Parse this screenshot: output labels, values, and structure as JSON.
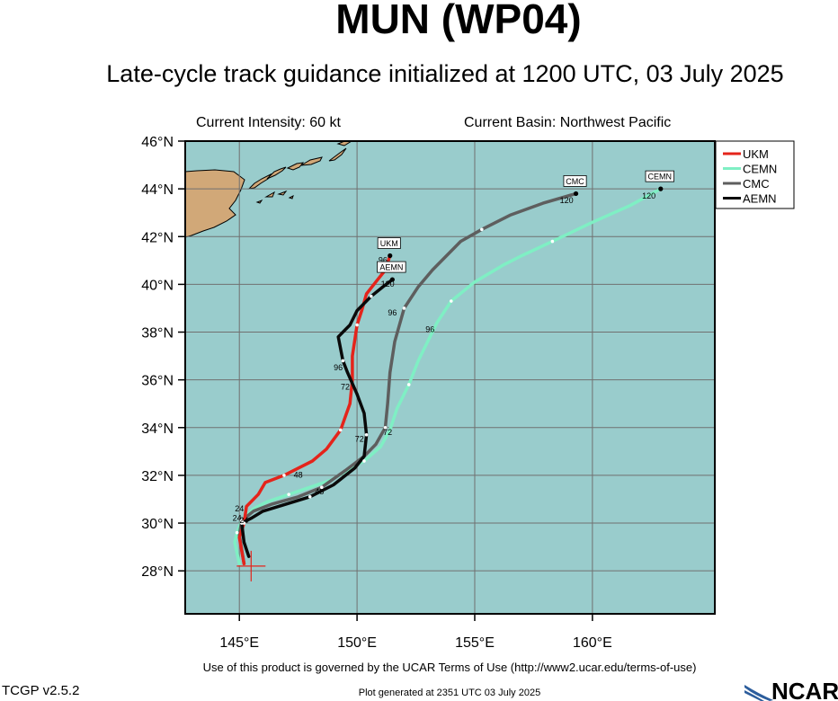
{
  "header": {
    "title": "MUN (WP04)",
    "subtitle": "Late-cycle track guidance initialized at 1200 UTC, 03 July 2025",
    "intensity": "Current Intensity: 60 kt",
    "basin": "Current Basin: Northwest Pacific"
  },
  "footer": {
    "terms": "Use of this product is governed by the UCAR Terms of Use (http://www2.ucar.edu/terms-of-use)",
    "version": "TCGP v2.5.2",
    "generated": "Plot generated at 2351 UTC   03 July 2025",
    "logo": "NCAR"
  },
  "colors": {
    "ocean": "#99cccc",
    "land": "#d1a878",
    "UKM": "#e4241b",
    "CEMN": "#7fefc4",
    "CMC": "#5e5e5e",
    "AEMN": "#0a0a0a",
    "current_position": "#e4241b"
  },
  "chart_data": {
    "type": "line",
    "title": "MUN (WP04)",
    "xlabel": "",
    "ylabel": "",
    "xlim": [
      142.7,
      165.2
    ],
    "ylim": [
      26.2,
      46.0
    ],
    "x_ticks": [
      145,
      150,
      155,
      160
    ],
    "x_tick_labels": [
      "145°E",
      "150°E",
      "155°E",
      "160°E"
    ],
    "y_ticks": [
      28,
      30,
      32,
      34,
      36,
      38,
      40,
      42,
      44,
      46
    ],
    "y_tick_labels": [
      "28°N",
      "30°N",
      "32°N",
      "34°N",
      "36°N",
      "38°N",
      "40°N",
      "42°N",
      "44°N",
      "46°N"
    ],
    "grid": true,
    "legend": "top-right",
    "current_position": {
      "lon": 145.5,
      "lat": 28.2
    },
    "series": [
      {
        "name": "UKM",
        "end_label": "UKM",
        "points": [
          [
            145.2,
            28.3
          ],
          [
            145.0,
            29.4
          ],
          [
            145.2,
            30.0
          ],
          [
            145.3,
            30.7
          ],
          [
            145.8,
            31.2
          ],
          [
            146.1,
            31.7
          ],
          [
            146.9,
            32.0
          ],
          [
            147.5,
            32.3
          ],
          [
            148.1,
            32.6
          ],
          [
            148.7,
            33.1
          ],
          [
            149.3,
            33.9
          ],
          [
            149.7,
            35.0
          ],
          [
            149.8,
            36.0
          ],
          [
            149.8,
            37.0
          ],
          [
            150.0,
            38.3
          ],
          [
            150.2,
            38.9
          ],
          [
            150.4,
            39.6
          ],
          [
            150.8,
            40.1
          ],
          [
            151.2,
            40.6
          ],
          [
            151.4,
            41.2
          ]
        ],
        "tau_labels": [
          {
            "lon": 145.0,
            "lat": 30.5,
            "text": "24"
          },
          {
            "lon": 147.5,
            "lat": 31.9,
            "text": "48"
          },
          {
            "lon": 151.1,
            "lat": 40.9,
            "text": "96"
          }
        ]
      },
      {
        "name": "CEMN",
        "end_label": "CEMN",
        "points": [
          [
            145.0,
            28.3
          ],
          [
            144.8,
            29.2
          ],
          [
            144.9,
            29.6
          ],
          [
            145.1,
            30.1
          ],
          [
            145.6,
            30.6
          ],
          [
            146.2,
            30.9
          ],
          [
            147.1,
            31.2
          ],
          [
            148.0,
            31.5
          ],
          [
            148.9,
            31.8
          ],
          [
            149.9,
            32.4
          ],
          [
            150.3,
            32.6
          ],
          [
            151.0,
            33.2
          ],
          [
            151.4,
            33.9
          ],
          [
            151.7,
            34.8
          ],
          [
            152.2,
            35.8
          ],
          [
            152.6,
            36.8
          ],
          [
            153.0,
            37.6
          ],
          [
            153.4,
            38.4
          ],
          [
            154.0,
            39.3
          ],
          [
            155.0,
            40.1
          ],
          [
            156.2,
            40.8
          ],
          [
            157.0,
            41.2
          ],
          [
            158.3,
            41.8
          ],
          [
            160.0,
            42.6
          ],
          [
            161.6,
            43.3
          ],
          [
            162.9,
            44.0
          ]
        ],
        "tau_labels": [
          {
            "lon": 144.9,
            "lat": 30.1,
            "text": "24"
          },
          {
            "lon": 148.4,
            "lat": 31.2,
            "text": "48"
          },
          {
            "lon": 153.1,
            "lat": 38.0,
            "text": "96"
          },
          {
            "lon": 162.4,
            "lat": 43.6,
            "text": "120"
          }
        ]
      },
      {
        "name": "CMC",
        "end_label": "CMC",
        "points": [
          [
            145.2,
            28.3
          ],
          [
            145.0,
            29.5
          ],
          [
            145.1,
            30.1
          ],
          [
            145.6,
            30.5
          ],
          [
            146.4,
            30.8
          ],
          [
            147.5,
            31.1
          ],
          [
            148.5,
            31.5
          ],
          [
            149.5,
            32.2
          ],
          [
            150.3,
            32.8
          ],
          [
            150.8,
            33.3
          ],
          [
            151.2,
            34.0
          ],
          [
            151.3,
            35.0
          ],
          [
            151.4,
            36.3
          ],
          [
            151.6,
            37.6
          ],
          [
            152.0,
            39.0
          ],
          [
            152.6,
            39.9
          ],
          [
            153.2,
            40.6
          ],
          [
            154.4,
            41.8
          ],
          [
            155.3,
            42.3
          ],
          [
            156.5,
            42.9
          ],
          [
            157.9,
            43.4
          ],
          [
            159.3,
            43.8
          ]
        ],
        "tau_labels": [
          {
            "lon": 151.3,
            "lat": 33.7,
            "text": "72"
          },
          {
            "lon": 151.5,
            "lat": 38.7,
            "text": "96"
          },
          {
            "lon": 158.9,
            "lat": 43.4,
            "text": "120"
          }
        ]
      },
      {
        "name": "AEMN",
        "end_label": "AEMN",
        "points": [
          [
            145.4,
            28.6
          ],
          [
            145.2,
            29.2
          ],
          [
            145.1,
            30.0
          ],
          [
            145.5,
            30.2
          ],
          [
            146.0,
            30.5
          ],
          [
            147.0,
            30.8
          ],
          [
            148.0,
            31.1
          ],
          [
            149.0,
            31.6
          ],
          [
            149.9,
            32.3
          ],
          [
            150.3,
            32.8
          ],
          [
            150.4,
            33.7
          ],
          [
            150.3,
            34.6
          ],
          [
            150.0,
            35.4
          ],
          [
            149.6,
            36.3
          ],
          [
            149.4,
            36.8
          ],
          [
            149.2,
            37.8
          ],
          [
            149.7,
            38.3
          ],
          [
            150.0,
            38.9
          ],
          [
            150.6,
            39.5
          ],
          [
            151.1,
            39.9
          ],
          [
            151.5,
            40.2
          ]
        ],
        "tau_labels": [
          {
            "lon": 145.2,
            "lat": 30.0,
            "text": "24"
          },
          {
            "lon": 150.1,
            "lat": 33.4,
            "text": "72"
          },
          {
            "lon": 149.5,
            "lat": 35.6,
            "text": "72"
          },
          {
            "lon": 149.2,
            "lat": 36.4,
            "text": "96"
          },
          {
            "lon": 151.3,
            "lat": 39.9,
            "text": "120"
          }
        ]
      }
    ]
  }
}
